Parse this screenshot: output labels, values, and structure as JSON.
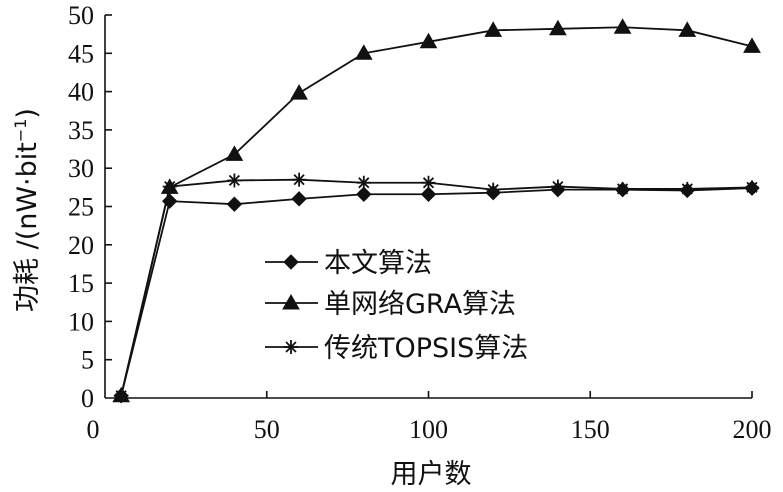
{
  "chart_data": {
    "type": "line",
    "xlabel": "用户数",
    "ylabel": "功耗 /(nW·bit",
    "ylabel_sup": "−1",
    "ylabel_end": ")",
    "xlim": [
      0,
      200
    ],
    "ylim": [
      0,
      50
    ],
    "xticks": [
      0,
      50,
      100,
      150,
      200
    ],
    "yticks": [
      5,
      10,
      15,
      20,
      25,
      30,
      35,
      40,
      45,
      50
    ],
    "y_zero_label": "0",
    "legend_placement": "center",
    "x": [
      5,
      20,
      40,
      60,
      80,
      100,
      120,
      140,
      160,
      180,
      200
    ],
    "series": [
      {
        "name": "本文算法",
        "marker": "diamond",
        "values": [
          0.3,
          25.7,
          25.3,
          26.0,
          26.6,
          26.6,
          26.8,
          27.2,
          27.2,
          27.1,
          27.4
        ]
      },
      {
        "name": "单网络GRA算法",
        "marker": "triangle",
        "values": [
          0.3,
          27.5,
          31.8,
          39.8,
          45.0,
          46.5,
          48.0,
          48.2,
          48.4,
          48.0,
          45.9
        ]
      },
      {
        "name": "传统TOPSIS算法",
        "marker": "star",
        "values": [
          0.3,
          27.6,
          28.4,
          28.5,
          28.1,
          28.1,
          27.2,
          27.6,
          27.3,
          27.3,
          27.5
        ]
      }
    ]
  }
}
